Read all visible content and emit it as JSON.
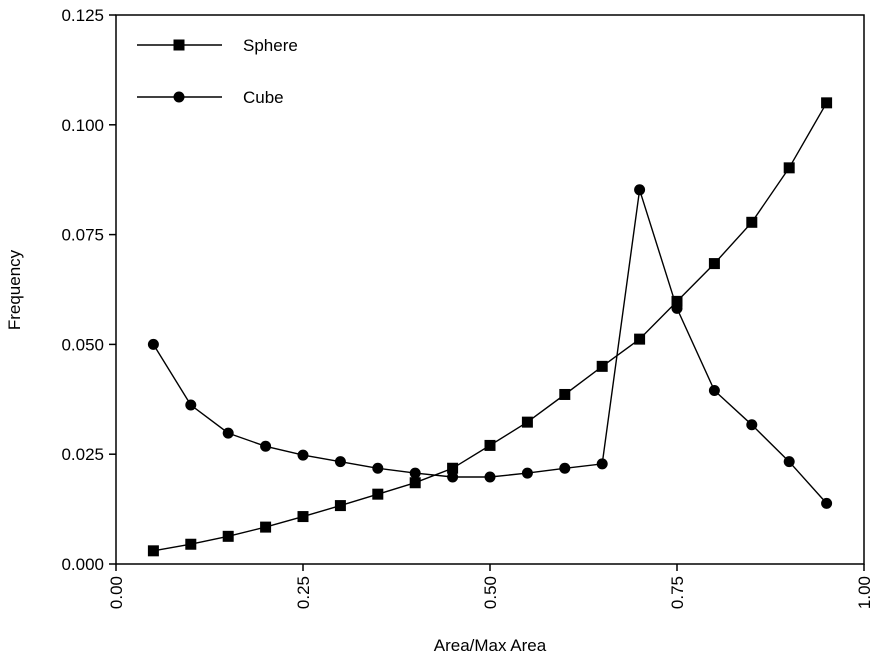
{
  "chart_data": {
    "type": "line",
    "title": "",
    "xlabel": "Area/Max Area",
    "ylabel": "Frequency",
    "xlim": [
      0.0,
      1.0
    ],
    "ylim": [
      0.0,
      0.125
    ],
    "x_ticks": [
      "0.00",
      "0.25",
      "0.50",
      "0.75",
      "1.00"
    ],
    "y_ticks": [
      "0.000",
      "0.025",
      "0.050",
      "0.075",
      "0.100",
      "0.125"
    ],
    "x_tick_values": [
      0,
      0.25,
      0.5,
      0.75,
      1.0
    ],
    "y_tick_values": [
      0,
      0.025,
      0.05,
      0.075,
      0.1,
      0.125
    ],
    "grid": false,
    "legend_position": "top-left",
    "series": [
      {
        "name": "Sphere",
        "marker": "square",
        "color": "#000000",
        "x": [
          0.05,
          0.1,
          0.15,
          0.2,
          0.25,
          0.3,
          0.35,
          0.4,
          0.45,
          0.5,
          0.55,
          0.6,
          0.65,
          0.7,
          0.75,
          0.8,
          0.85,
          0.9,
          0.95
        ],
        "y": [
          0.003,
          0.0045,
          0.0063,
          0.0084,
          0.0108,
          0.0133,
          0.0159,
          0.0185,
          0.0218,
          0.027,
          0.0323,
          0.0386,
          0.045,
          0.0512,
          0.0598,
          0.0684,
          0.0778,
          0.0902,
          0.105
        ]
      },
      {
        "name": "Cube",
        "marker": "circle",
        "color": "#000000",
        "x": [
          0.05,
          0.1,
          0.15,
          0.2,
          0.25,
          0.3,
          0.35,
          0.4,
          0.45,
          0.5,
          0.55,
          0.6,
          0.65,
          0.7,
          0.75,
          0.8,
          0.85,
          0.9,
          0.95
        ],
        "y": [
          0.05,
          0.0362,
          0.0298,
          0.0268,
          0.0248,
          0.0233,
          0.0218,
          0.0207,
          0.0198,
          0.0198,
          0.0207,
          0.0218,
          0.0228,
          0.0852,
          0.0582,
          0.0395,
          0.0317,
          0.0233,
          0.0138
        ]
      }
    ]
  }
}
